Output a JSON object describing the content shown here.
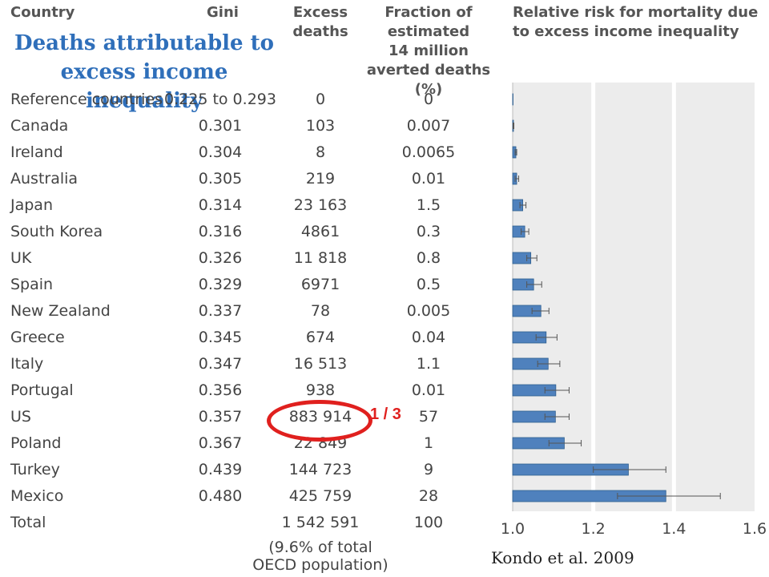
{
  "headers": {
    "country": "Country",
    "gini": "Gini",
    "excess": [
      "Excess",
      "deaths"
    ],
    "fraction": [
      "Fraction of",
      "estimated",
      "14 million",
      "averted deaths (%)"
    ],
    "risk": [
      "Relative risk for mortality due",
      "to excess income inequality"
    ]
  },
  "overlay_title": "Deaths attributable to excess income inequality",
  "rows": [
    {
      "country": "Reference countries",
      "gini": "0.225 to 0.293",
      "excess": "0",
      "fraction": "0"
    },
    {
      "country": "Canada",
      "gini": "0.301",
      "excess": "103",
      "fraction": "0.007"
    },
    {
      "country": "Ireland",
      "gini": "0.304",
      "excess": "8",
      "fraction": "0.0065"
    },
    {
      "country": "Australia",
      "gini": "0.305",
      "excess": "219",
      "fraction": "0.01"
    },
    {
      "country": "Japan",
      "gini": "0.314",
      "excess": "23 163",
      "fraction": "1.5"
    },
    {
      "country": "South Korea",
      "gini": "0.316",
      "excess": "4861",
      "fraction": "0.3"
    },
    {
      "country": "UK",
      "gini": "0.326",
      "excess": "11 818",
      "fraction": "0.8"
    },
    {
      "country": "Spain",
      "gini": "0.329",
      "excess": "6971",
      "fraction": "0.5"
    },
    {
      "country": "New Zealand",
      "gini": "0.337",
      "excess": "78",
      "fraction": "0.005"
    },
    {
      "country": "Greece",
      "gini": "0.345",
      "excess": "674",
      "fraction": "0.04"
    },
    {
      "country": "Italy",
      "gini": "0.347",
      "excess": "16 513",
      "fraction": "1.1"
    },
    {
      "country": "Portugal",
      "gini": "0.356",
      "excess": "938",
      "fraction": "0.01"
    },
    {
      "country": "US",
      "gini": "0.357",
      "excess": "883 914",
      "fraction": "57"
    },
    {
      "country": "Poland",
      "gini": "0.367",
      "excess": "22 849",
      "fraction": "1"
    },
    {
      "country": "Turkey",
      "gini": "0.439",
      "excess": "144 723",
      "fraction": "9"
    },
    {
      "country": "Mexico",
      "gini": "0.480",
      "excess": "425 759",
      "fraction": "28"
    },
    {
      "country": "Total",
      "gini": "",
      "excess": "1 542 591",
      "fraction": "100"
    }
  ],
  "total_note": [
    "(9.6% of total",
    "OECD population)"
  ],
  "annotation": "1 / 3",
  "credit": "Kondo et al. 2009",
  "colors": {
    "bar": "#4f81bd",
    "bar_edge": "#2f5f8f",
    "highlight": "#e0201e",
    "title": "#2f6fba",
    "panel": "#ececec"
  },
  "chart_data": {
    "type": "bar",
    "orientation": "horizontal",
    "title": "Relative risk for mortality due to excess income inequality",
    "categories": [
      "Reference countries",
      "Canada",
      "Ireland",
      "Australia",
      "Japan",
      "South Korea",
      "UK",
      "Spain",
      "New Zealand",
      "Greece",
      "Italy",
      "Portugal",
      "US",
      "Poland",
      "Turkey",
      "Mexico"
    ],
    "values": [
      1.0,
      1.002,
      1.008,
      1.01,
      1.025,
      1.03,
      1.045,
      1.052,
      1.07,
      1.083,
      1.088,
      1.107,
      1.106,
      1.128,
      1.287,
      1.38
    ],
    "error_low": [
      1.0,
      1.001,
      1.006,
      1.006,
      1.018,
      1.021,
      1.035,
      1.035,
      1.048,
      1.058,
      1.062,
      1.08,
      1.08,
      1.09,
      1.2,
      1.26
    ],
    "error_high": [
      1.0,
      1.003,
      1.01,
      1.015,
      1.033,
      1.04,
      1.06,
      1.072,
      1.09,
      1.11,
      1.117,
      1.14,
      1.14,
      1.17,
      1.38,
      1.515
    ],
    "xlim": [
      1.0,
      1.6
    ],
    "xticks": [
      "1.0",
      "1.2",
      "1.4",
      "1.6"
    ],
    "gridlines": [
      1.2,
      1.4
    ]
  }
}
